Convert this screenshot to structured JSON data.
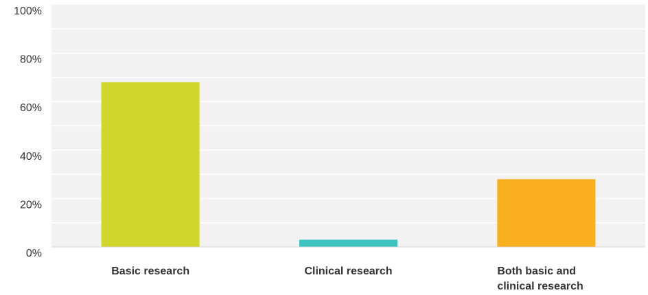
{
  "chart_data": {
    "type": "bar",
    "title": "",
    "xlabel": "",
    "ylabel": "",
    "categories": [
      "Basic research",
      "Clinical research",
      "Both basic and clinical research"
    ],
    "category_lines": [
      [
        "Basic research"
      ],
      [
        "Clinical research"
      ],
      [
        "Both basic and",
        "clinical research"
      ]
    ],
    "values": [
      68,
      3,
      28
    ],
    "ylim": [
      0,
      100
    ],
    "yticks": [
      0,
      20,
      40,
      60,
      80,
      100
    ],
    "ytick_labels": [
      "0%",
      "20%",
      "40%",
      "60%",
      "80%",
      "100%"
    ],
    "grid": true,
    "minor_grid_step": 10,
    "bar_colors": [
      "#d0d62a",
      "#3cc3c0",
      "#f8b01e"
    ],
    "plot_background": "#f2f2f2",
    "grid_color": "#ffffff",
    "legend": "none"
  }
}
